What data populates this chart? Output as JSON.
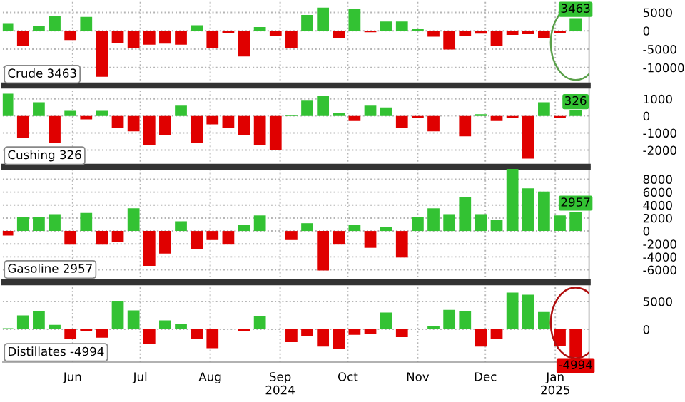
{
  "chart_data": [
    {
      "type": "bar",
      "title": "Crude 3463",
      "tick_labels": "y",
      "grid": true,
      "x": [
        "2024-05-17",
        "2024-05-24",
        "2024-05-31",
        "2024-06-07",
        "2024-06-14",
        "2024-06-21",
        "2024-06-28",
        "2024-07-05",
        "2024-07-12",
        "2024-07-19",
        "2024-07-26",
        "2024-08-02",
        "2024-08-09",
        "2024-08-16",
        "2024-08-23",
        "2024-08-30",
        "2024-09-06",
        "2024-09-13",
        "2024-09-20",
        "2024-09-27",
        "2024-10-04",
        "2024-10-11",
        "2024-10-18",
        "2024-10-25",
        "2024-11-01",
        "2024-11-08",
        "2024-11-15",
        "2024-11-22",
        "2024-11-29",
        "2024-12-06",
        "2024-12-13",
        "2024-12-20",
        "2024-12-27",
        "2025-01-03",
        "2025-01-10",
        "2025-01-17",
        "2025-01-24"
      ],
      "values": [
        2100,
        -4100,
        1300,
        4000,
        -2500,
        3800,
        -12500,
        -3400,
        -4800,
        -3800,
        -3500,
        -3800,
        1500,
        -4800,
        -600,
        -7000,
        1000,
        -1500,
        -4600,
        4300,
        6300,
        -2100,
        5900,
        -400,
        2500,
        2500,
        600,
        -1600,
        -5100,
        -1400,
        -800,
        -4100,
        -1100,
        -900,
        -1900,
        -600,
        3463
      ],
      "colors": [
        "#33c233",
        "#e00000",
        "#33c233",
        "#33c233",
        "#e00000",
        "#33c233",
        "#e00000",
        "#e00000",
        "#e00000",
        "#e00000",
        "#e00000",
        "#e00000",
        "#33c233",
        "#e00000",
        "#e00000",
        "#e00000",
        "#33c233",
        "#e00000",
        "#e00000",
        "#33c233",
        "#33c233",
        "#e00000",
        "#33c233",
        "#e00000",
        "#33c233",
        "#33c233",
        "#33c233",
        "#e00000",
        "#e00000",
        "#e00000",
        "#e00000",
        "#e00000",
        "#e00000",
        "#e00000",
        "#e00000",
        "#e00000",
        "#33c233"
      ],
      "value_labels": [
        null,
        null,
        null,
        null,
        null,
        null,
        null,
        null,
        null,
        null,
        null,
        null,
        null,
        null,
        null,
        null,
        null,
        null,
        null,
        null,
        null,
        null,
        null,
        null,
        null,
        null,
        null,
        null,
        null,
        null,
        null,
        null,
        null,
        null,
        null,
        null,
        "3463"
      ],
      "xlim": [
        "2024-05-15",
        "2025-01-30"
      ],
      "xticks": [
        {
          "value": "2024-06-15",
          "label": null
        },
        {
          "value": "2024-07-15",
          "label": null
        },
        {
          "value": "2024-08-15",
          "label": null
        },
        {
          "value": "2024-09-15",
          "label": null
        },
        {
          "value": "2024-10-15",
          "label": null
        },
        {
          "value": "2024-11-15",
          "label": null
        },
        {
          "value": "2024-12-15",
          "label": null
        },
        {
          "value": "2025-01-15",
          "label": null
        }
      ],
      "ylim": [
        -14500,
        8000
      ],
      "yticks": [
        5000,
        0,
        -5000,
        -10000
      ]
    },
    {
      "type": "bar",
      "title": "Cushing 326",
      "tick_labels": "y",
      "grid": true,
      "x": [
        "2024-05-17",
        "2024-05-24",
        "2024-05-31",
        "2024-06-07",
        "2024-06-14",
        "2024-06-21",
        "2024-06-28",
        "2024-07-05",
        "2024-07-12",
        "2024-07-19",
        "2024-07-26",
        "2024-08-02",
        "2024-08-09",
        "2024-08-16",
        "2024-08-23",
        "2024-08-30",
        "2024-09-06",
        "2024-09-13",
        "2024-09-20",
        "2024-09-27",
        "2024-10-04",
        "2024-10-11",
        "2024-10-18",
        "2024-10-25",
        "2024-11-01",
        "2024-11-08",
        "2024-11-15",
        "2024-11-22",
        "2024-11-29",
        "2024-12-06",
        "2024-12-13",
        "2024-12-20",
        "2024-12-27",
        "2025-01-03",
        "2025-01-10",
        "2025-01-17",
        "2025-01-24"
      ],
      "values": [
        1300,
        -1300,
        800,
        -1600,
        300,
        -200,
        300,
        -700,
        -900,
        -1700,
        -1100,
        600,
        -1600,
        -500,
        -700,
        -1100,
        -1700,
        -2000,
        50,
        900,
        1200,
        150,
        -300,
        600,
        500,
        -700,
        -100,
        -900,
        0,
        -1200,
        100,
        -300,
        -100,
        -2500,
        800,
        -100,
        326
      ],
      "colors": [
        "#33c233",
        "#e00000",
        "#33c233",
        "#e00000",
        "#33c233",
        "#e00000",
        "#33c233",
        "#e00000",
        "#e00000",
        "#e00000",
        "#e00000",
        "#33c233",
        "#e00000",
        "#e00000",
        "#e00000",
        "#e00000",
        "#e00000",
        "#e00000",
        "#33c233",
        "#33c233",
        "#33c233",
        "#33c233",
        "#e00000",
        "#33c233",
        "#33c233",
        "#e00000",
        "#e00000",
        "#e00000",
        "#33c233",
        "#e00000",
        "#33c233",
        "#e00000",
        "#e00000",
        "#e00000",
        "#33c233",
        "#e00000",
        "#33c233"
      ],
      "value_labels": [
        null,
        null,
        null,
        null,
        null,
        null,
        null,
        null,
        null,
        null,
        null,
        null,
        null,
        null,
        null,
        null,
        null,
        null,
        null,
        null,
        null,
        null,
        null,
        null,
        null,
        null,
        null,
        null,
        null,
        null,
        null,
        null,
        null,
        null,
        null,
        null,
        "326"
      ],
      "xlim": [
        "2024-05-15",
        "2025-01-30"
      ],
      "xticks": [
        {
          "value": "2024-06-15",
          "label": null
        },
        {
          "value": "2024-07-15",
          "label": null
        },
        {
          "value": "2024-08-15",
          "label": null
        },
        {
          "value": "2024-09-15",
          "label": null
        },
        {
          "value": "2024-10-15",
          "label": null
        },
        {
          "value": "2024-11-15",
          "label": null
        },
        {
          "value": "2024-12-15",
          "label": null
        },
        {
          "value": "2025-01-15",
          "label": null
        }
      ],
      "ylim": [
        -2900,
        1700
      ],
      "yticks": [
        1000,
        0,
        -1000,
        -2000
      ]
    },
    {
      "type": "bar",
      "title": "Gasoline 2957",
      "tick_labels": "y",
      "grid": true,
      "x": [
        "2024-05-17",
        "2024-05-24",
        "2024-05-31",
        "2024-06-07",
        "2024-06-14",
        "2024-06-21",
        "2024-06-28",
        "2024-07-05",
        "2024-07-12",
        "2024-07-19",
        "2024-07-26",
        "2024-08-02",
        "2024-08-09",
        "2024-08-16",
        "2024-08-23",
        "2024-08-30",
        "2024-09-06",
        "2024-09-13",
        "2024-09-20",
        "2024-09-27",
        "2024-10-04",
        "2024-10-11",
        "2024-10-18",
        "2024-10-25",
        "2024-11-01",
        "2024-11-08",
        "2024-11-15",
        "2024-11-22",
        "2024-11-29",
        "2024-12-06",
        "2024-12-13",
        "2024-12-20",
        "2024-12-27",
        "2025-01-03",
        "2025-01-10",
        "2025-01-17",
        "2025-01-24"
      ],
      "values": [
        -700,
        2100,
        2200,
        2600,
        -2100,
        2800,
        -2100,
        -1700,
        3500,
        -5400,
        -3500,
        1500,
        -2800,
        -1400,
        -2100,
        1000,
        2400,
        0,
        -1400,
        1200,
        -6100,
        -2100,
        1000,
        -2600,
        600,
        -4100,
        2200,
        3500,
        2600,
        5200,
        2600,
        1700,
        9600,
        6600,
        6100,
        2400,
        2957
      ],
      "colors": [
        "#e00000",
        "#33c233",
        "#33c233",
        "#33c233",
        "#e00000",
        "#33c233",
        "#e00000",
        "#e00000",
        "#33c233",
        "#e00000",
        "#e00000",
        "#33c233",
        "#e00000",
        "#e00000",
        "#e00000",
        "#33c233",
        "#33c233",
        "#33c233",
        "#e00000",
        "#33c233",
        "#e00000",
        "#e00000",
        "#33c233",
        "#e00000",
        "#33c233",
        "#e00000",
        "#33c233",
        "#33c233",
        "#33c233",
        "#33c233",
        "#33c233",
        "#33c233",
        "#33c233",
        "#33c233",
        "#33c233",
        "#33c233",
        "#33c233"
      ],
      "value_labels": [
        null,
        null,
        null,
        null,
        null,
        null,
        null,
        null,
        null,
        null,
        null,
        null,
        null,
        null,
        null,
        null,
        null,
        null,
        null,
        null,
        null,
        null,
        null,
        null,
        null,
        null,
        null,
        null,
        null,
        null,
        null,
        null,
        null,
        null,
        null,
        null,
        "2957"
      ],
      "xlim": [
        "2024-05-15",
        "2025-01-30"
      ],
      "xticks": [
        {
          "value": "2024-06-15",
          "label": null
        },
        {
          "value": "2024-07-15",
          "label": null
        },
        {
          "value": "2024-08-15",
          "label": null
        },
        {
          "value": "2024-09-15",
          "label": null
        },
        {
          "value": "2024-10-15",
          "label": null
        },
        {
          "value": "2024-11-15",
          "label": null
        },
        {
          "value": "2024-12-15",
          "label": null
        },
        {
          "value": "2025-01-15",
          "label": null
        }
      ],
      "ylim": [
        -7700,
        9700
      ],
      "yticks": [
        8000,
        6000,
        4000,
        2000,
        0,
        -2000,
        -4000,
        -6000
      ]
    },
    {
      "type": "bar",
      "title": "Distillates -4994",
      "grid": true,
      "x": [
        "2024-05-17",
        "2024-05-24",
        "2024-05-31",
        "2024-06-07",
        "2024-06-14",
        "2024-06-21",
        "2024-06-28",
        "2024-07-05",
        "2024-07-12",
        "2024-07-19",
        "2024-07-26",
        "2024-08-02",
        "2024-08-09",
        "2024-08-16",
        "2024-08-23",
        "2024-08-30",
        "2024-09-06",
        "2024-09-13",
        "2024-09-20",
        "2024-09-27",
        "2024-10-04",
        "2024-10-11",
        "2024-10-18",
        "2024-10-25",
        "2024-11-01",
        "2024-11-08",
        "2024-11-15",
        "2024-11-22",
        "2024-11-29",
        "2024-12-06",
        "2024-12-13",
        "2024-12-20",
        "2024-12-27",
        "2025-01-03",
        "2025-01-10",
        "2025-01-17",
        "2025-01-24"
      ],
      "values": [
        200,
        2500,
        3300,
        800,
        -1800,
        -400,
        -1500,
        5000,
        3400,
        -2700,
        1600,
        900,
        -1800,
        -3400,
        100,
        -400,
        2300,
        0,
        -2300,
        -1300,
        -3100,
        -3600,
        -1000,
        -900,
        3000,
        -1400,
        0,
        500,
        3500,
        3300,
        -3100,
        -1800,
        6600,
        6200,
        3100,
        -3000,
        -4994
      ],
      "colors": [
        "#33c233",
        "#33c233",
        "#33c233",
        "#33c233",
        "#e00000",
        "#e00000",
        "#e00000",
        "#33c233",
        "#33c233",
        "#e00000",
        "#33c233",
        "#33c233",
        "#e00000",
        "#e00000",
        "#33c233",
        "#e00000",
        "#33c233",
        "#33c233",
        "#e00000",
        "#e00000",
        "#e00000",
        "#e00000",
        "#e00000",
        "#e00000",
        "#33c233",
        "#e00000",
        "#33c233",
        "#33c233",
        "#33c233",
        "#33c233",
        "#e00000",
        "#e00000",
        "#33c233",
        "#33c233",
        "#33c233",
        "#e00000",
        "#e00000"
      ],
      "value_labels": [
        null,
        null,
        null,
        null,
        null,
        null,
        null,
        null,
        null,
        null,
        null,
        null,
        null,
        null,
        null,
        null,
        null,
        null,
        null,
        null,
        null,
        null,
        null,
        null,
        null,
        null,
        null,
        null,
        null,
        null,
        null,
        null,
        null,
        null,
        null,
        null,
        "-4994"
      ],
      "xlim": [
        "2024-05-15",
        "2025-01-30"
      ],
      "xticks": [
        {
          "value": "2024-06-15",
          "label": "Jun"
        },
        {
          "value": "2024-07-15",
          "label": "Jul"
        },
        {
          "value": "2024-08-15",
          "label": "Aug"
        },
        {
          "value": "2024-09-15",
          "label": "Sep\n2024"
        },
        {
          "value": "2024-10-15",
          "label": "Oct"
        },
        {
          "value": "2024-11-15",
          "label": "Nov"
        },
        {
          "value": "2024-12-15",
          "label": "Dec"
        },
        {
          "value": "2025-01-15",
          "label": "Jan\n2025"
        }
      ],
      "ylim": [
        -5900,
        8200
      ],
      "yticks": [
        5000,
        0
      ]
    }
  ]
}
